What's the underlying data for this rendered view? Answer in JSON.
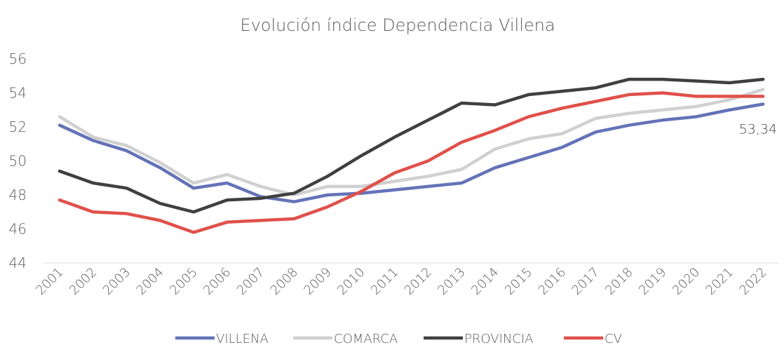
{
  "chart_data": {
    "type": "line",
    "title": "Evolución índice Dependencia Villena",
    "categories": [
      "2001",
      "2002",
      "2003",
      "2004",
      "2005",
      "2006",
      "2007",
      "2008",
      "2009",
      "2010",
      "2011",
      "2012",
      "2013",
      "2014",
      "2015",
      "2016",
      "2017",
      "2018",
      "2019",
      "2020",
      "2021",
      "2022"
    ],
    "series": [
      {
        "name": "VILLENA",
        "color": "#6473b8",
        "values": [
          52.1,
          51.2,
          50.6,
          49.6,
          48.4,
          48.7,
          47.9,
          47.6,
          48.0,
          48.1,
          48.3,
          48.5,
          48.7,
          49.6,
          50.2,
          50.8,
          51.7,
          52.1,
          52.4,
          52.6,
          53.0,
          53.34
        ],
        "value_labels": [
          null,
          null,
          null,
          null,
          null,
          null,
          null,
          null,
          null,
          null,
          null,
          null,
          null,
          null,
          null,
          null,
          null,
          null,
          null,
          null,
          null,
          "53,34"
        ]
      },
      {
        "name": "COMARCA",
        "color": "#d0d0d0",
        "values": [
          52.6,
          51.4,
          50.9,
          49.9,
          48.7,
          49.2,
          48.5,
          48.0,
          48.5,
          48.5,
          48.8,
          49.1,
          49.5,
          50.7,
          51.3,
          51.6,
          52.5,
          52.8,
          53.0,
          53.2,
          53.6,
          54.2
        ]
      },
      {
        "name": "PROVINCIA",
        "color": "#404040",
        "values": [
          49.4,
          48.7,
          48.4,
          47.5,
          47.0,
          47.7,
          47.8,
          48.1,
          49.1,
          50.3,
          51.4,
          52.4,
          53.4,
          53.3,
          53.9,
          54.1,
          54.3,
          54.8,
          54.8,
          54.7,
          54.6,
          54.8
        ]
      },
      {
        "name": "CV",
        "color": "#e0504a",
        "values": [
          47.7,
          47.0,
          46.9,
          46.5,
          45.8,
          46.4,
          46.5,
          46.6,
          47.3,
          48.2,
          49.3,
          50.0,
          51.1,
          51.8,
          52.6,
          53.1,
          53.5,
          53.9,
          54.0,
          53.8,
          53.8,
          53.8
        ]
      }
    ],
    "ylim": [
      44,
      56
    ],
    "yticks": [
      44,
      46,
      48,
      50,
      52,
      54,
      56
    ],
    "grid": false,
    "legend": "bottom"
  }
}
